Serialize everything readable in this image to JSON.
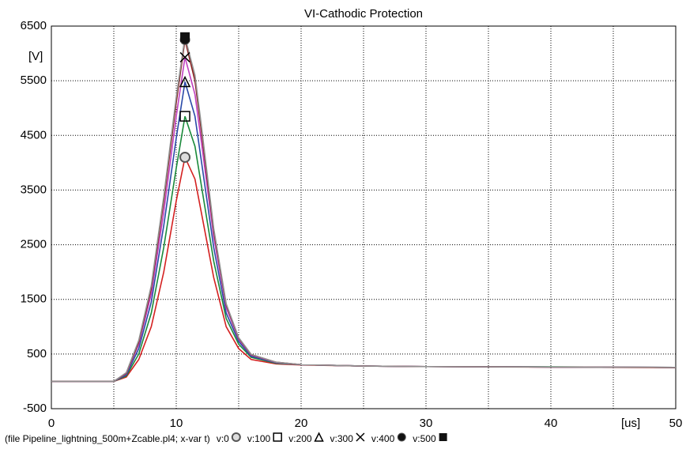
{
  "chart_data": {
    "type": "line",
    "title": "VI-Cathodic Protection",
    "y_unit": "[V]",
    "x_unit": "[us]",
    "footer": "(file Pipeline_lightning_500m+Zcable.pl4; x-var t)",
    "x": [
      0,
      5,
      6,
      7,
      8,
      9,
      10,
      10.7,
      11.5,
      12,
      13,
      14,
      15,
      16,
      18,
      20,
      25,
      30,
      40,
      50
    ],
    "series": [
      {
        "name": "v:0",
        "color": "#d42020",
        "marker": "circle",
        "values": [
          0,
          0,
          80,
          400,
          1000,
          2000,
          3300,
          4100,
          3700,
          3100,
          1900,
          1000,
          600,
          400,
          320,
          300,
          280,
          270,
          260,
          250
        ]
      },
      {
        "name": "v:100",
        "color": "#1a8a3a",
        "marker": "square",
        "values": [
          0,
          0,
          100,
          500,
          1250,
          2450,
          3900,
          4850,
          4300,
          3600,
          2200,
          1150,
          680,
          440,
          330,
          305,
          280,
          270,
          265,
          255
        ]
      },
      {
        "name": "v:200",
        "color": "#2a4aa8",
        "marker": "triangle",
        "values": [
          0,
          0,
          120,
          600,
          1450,
          2850,
          4450,
          5480,
          4850,
          4050,
          2450,
          1250,
          730,
          460,
          340,
          305,
          280,
          270,
          262,
          255
        ]
      },
      {
        "name": "v:300",
        "color": "#c040c0",
        "marker": "x",
        "values": [
          0,
          0,
          140,
          680,
          1600,
          3100,
          4850,
          5930,
          5250,
          4400,
          2650,
          1350,
          770,
          480,
          345,
          305,
          280,
          270,
          262,
          255
        ]
      },
      {
        "name": "v:400",
        "color": "#8b1a1a",
        "marker": "dot",
        "values": [
          0,
          0,
          150,
          720,
          1700,
          3300,
          5100,
          6250,
          5500,
          4600,
          2750,
          1400,
          790,
          490,
          350,
          305,
          280,
          270,
          262,
          255
        ]
      },
      {
        "name": "v:500",
        "color": "#909090",
        "marker": "filled-square",
        "values": [
          0,
          0,
          160,
          750,
          1750,
          3380,
          5200,
          6300,
          5600,
          4700,
          2800,
          1420,
          800,
          495,
          350,
          305,
          280,
          270,
          262,
          255
        ]
      }
    ],
    "marker_index": 7,
    "xlim": [
      0,
      50
    ],
    "xticks": [
      0,
      10,
      20,
      30,
      40,
      50
    ],
    "ylim": [
      -500,
      6500
    ],
    "yticks": [
      -500,
      500,
      1500,
      2500,
      3500,
      4500,
      5500,
      6500
    ],
    "grid": true
  }
}
